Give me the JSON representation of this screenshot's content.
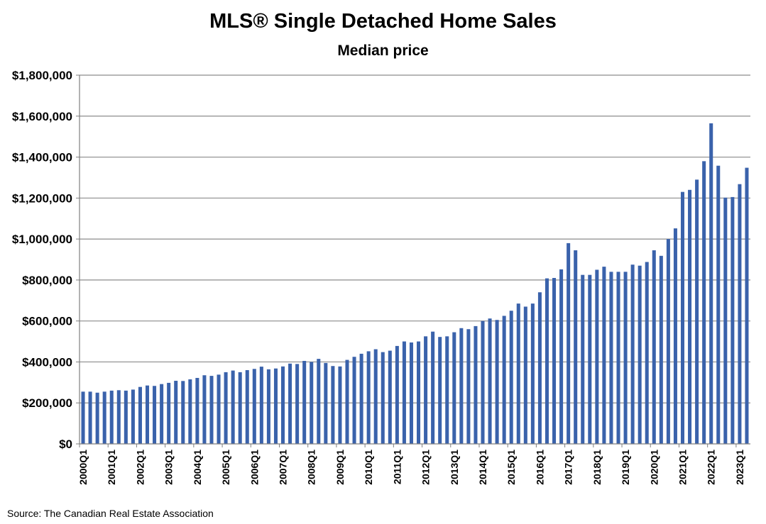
{
  "title": "MLS® Single Detached Home Sales",
  "subtitle": "Median price",
  "source": "Source: The Canadian Real Estate Association",
  "colors": {
    "bar": "#3A62AB",
    "grid": "#8C8C8C",
    "axis": "#7F7F7F"
  },
  "chart_data": {
    "type": "bar",
    "title": "MLS® Single Detached Home Sales",
    "subtitle": "Median price",
    "xlabel": "",
    "ylabel": "",
    "ylim": [
      0,
      1800000
    ],
    "ytick_values": [
      0,
      200000,
      400000,
      600000,
      800000,
      1000000,
      1200000,
      1400000,
      1600000,
      1800000
    ],
    "ytick_labels": [
      "$0",
      "$200,000",
      "$400,000",
      "$600,000",
      "$800,000",
      "$1,000,000",
      "$1,200,000",
      "$1,400,000",
      "$1,600,000",
      "$1,800,000"
    ],
    "xtick_labels": [
      "2000Q1",
      "2001Q1",
      "2002Q1",
      "2003Q1",
      "2004Q1",
      "2005Q1",
      "2006Q1",
      "2007Q1",
      "2008Q1",
      "2009Q1",
      "2010Q1",
      "2011Q1",
      "2012Q1",
      "2013Q1",
      "2014Q1",
      "2015Q1",
      "2016Q1",
      "2017Q1",
      "2018Q1",
      "2019Q1",
      "2020Q1",
      "2021Q1",
      "2022Q1",
      "2023Q1"
    ],
    "grid": true,
    "legend": "none",
    "categories": [
      "2000Q1",
      "2000Q2",
      "2000Q3",
      "2000Q4",
      "2001Q1",
      "2001Q2",
      "2001Q3",
      "2001Q4",
      "2002Q1",
      "2002Q2",
      "2002Q3",
      "2002Q4",
      "2003Q1",
      "2003Q2",
      "2003Q3",
      "2003Q4",
      "2004Q1",
      "2004Q2",
      "2004Q3",
      "2004Q4",
      "2005Q1",
      "2005Q2",
      "2005Q3",
      "2005Q4",
      "2006Q1",
      "2006Q2",
      "2006Q3",
      "2006Q4",
      "2007Q1",
      "2007Q2",
      "2007Q3",
      "2007Q4",
      "2008Q1",
      "2008Q2",
      "2008Q3",
      "2008Q4",
      "2009Q1",
      "2009Q2",
      "2009Q3",
      "2009Q4",
      "2010Q1",
      "2010Q2",
      "2010Q3",
      "2010Q4",
      "2011Q1",
      "2011Q2",
      "2011Q3",
      "2011Q4",
      "2012Q1",
      "2012Q2",
      "2012Q3",
      "2012Q4",
      "2013Q1",
      "2013Q2",
      "2013Q3",
      "2013Q4",
      "2014Q1",
      "2014Q2",
      "2014Q3",
      "2014Q4",
      "2015Q1",
      "2015Q2",
      "2015Q3",
      "2015Q4",
      "2016Q1",
      "2016Q2",
      "2016Q3",
      "2016Q4",
      "2017Q1",
      "2017Q2",
      "2017Q3",
      "2017Q4",
      "2018Q1",
      "2018Q2",
      "2018Q3",
      "2018Q4",
      "2019Q1",
      "2019Q2",
      "2019Q3",
      "2019Q4",
      "2020Q1",
      "2020Q2",
      "2020Q3",
      "2020Q4",
      "2021Q1",
      "2021Q2",
      "2021Q3",
      "2021Q4",
      "2022Q1",
      "2022Q2",
      "2022Q3",
      "2022Q4",
      "2023Q1",
      "2023Q2"
    ],
    "values": [
      255000,
      255000,
      250000,
      255000,
      260000,
      262000,
      260000,
      265000,
      278000,
      285000,
      283000,
      292000,
      298000,
      308000,
      307000,
      315000,
      322000,
      335000,
      332000,
      338000,
      350000,
      358000,
      350000,
      360000,
      366000,
      377000,
      364000,
      368000,
      378000,
      392000,
      390000,
      405000,
      400000,
      415000,
      395000,
      380000,
      378000,
      410000,
      425000,
      440000,
      452000,
      462000,
      448000,
      455000,
      478000,
      500000,
      495000,
      500000,
      525000,
      548000,
      522000,
      525000,
      545000,
      565000,
      560000,
      575000,
      600000,
      612000,
      605000,
      625000,
      650000,
      685000,
      670000,
      685000,
      740000,
      808000,
      810000,
      852000,
      980000,
      945000,
      825000,
      825000,
      850000,
      865000,
      840000,
      840000,
      840000,
      875000,
      870000,
      888000,
      945000,
      918000,
      1000000,
      1052000,
      1230000,
      1240000,
      1290000,
      1380000,
      1565000,
      1358000,
      1202000,
      1205000,
      1268000,
      1348000
    ]
  }
}
